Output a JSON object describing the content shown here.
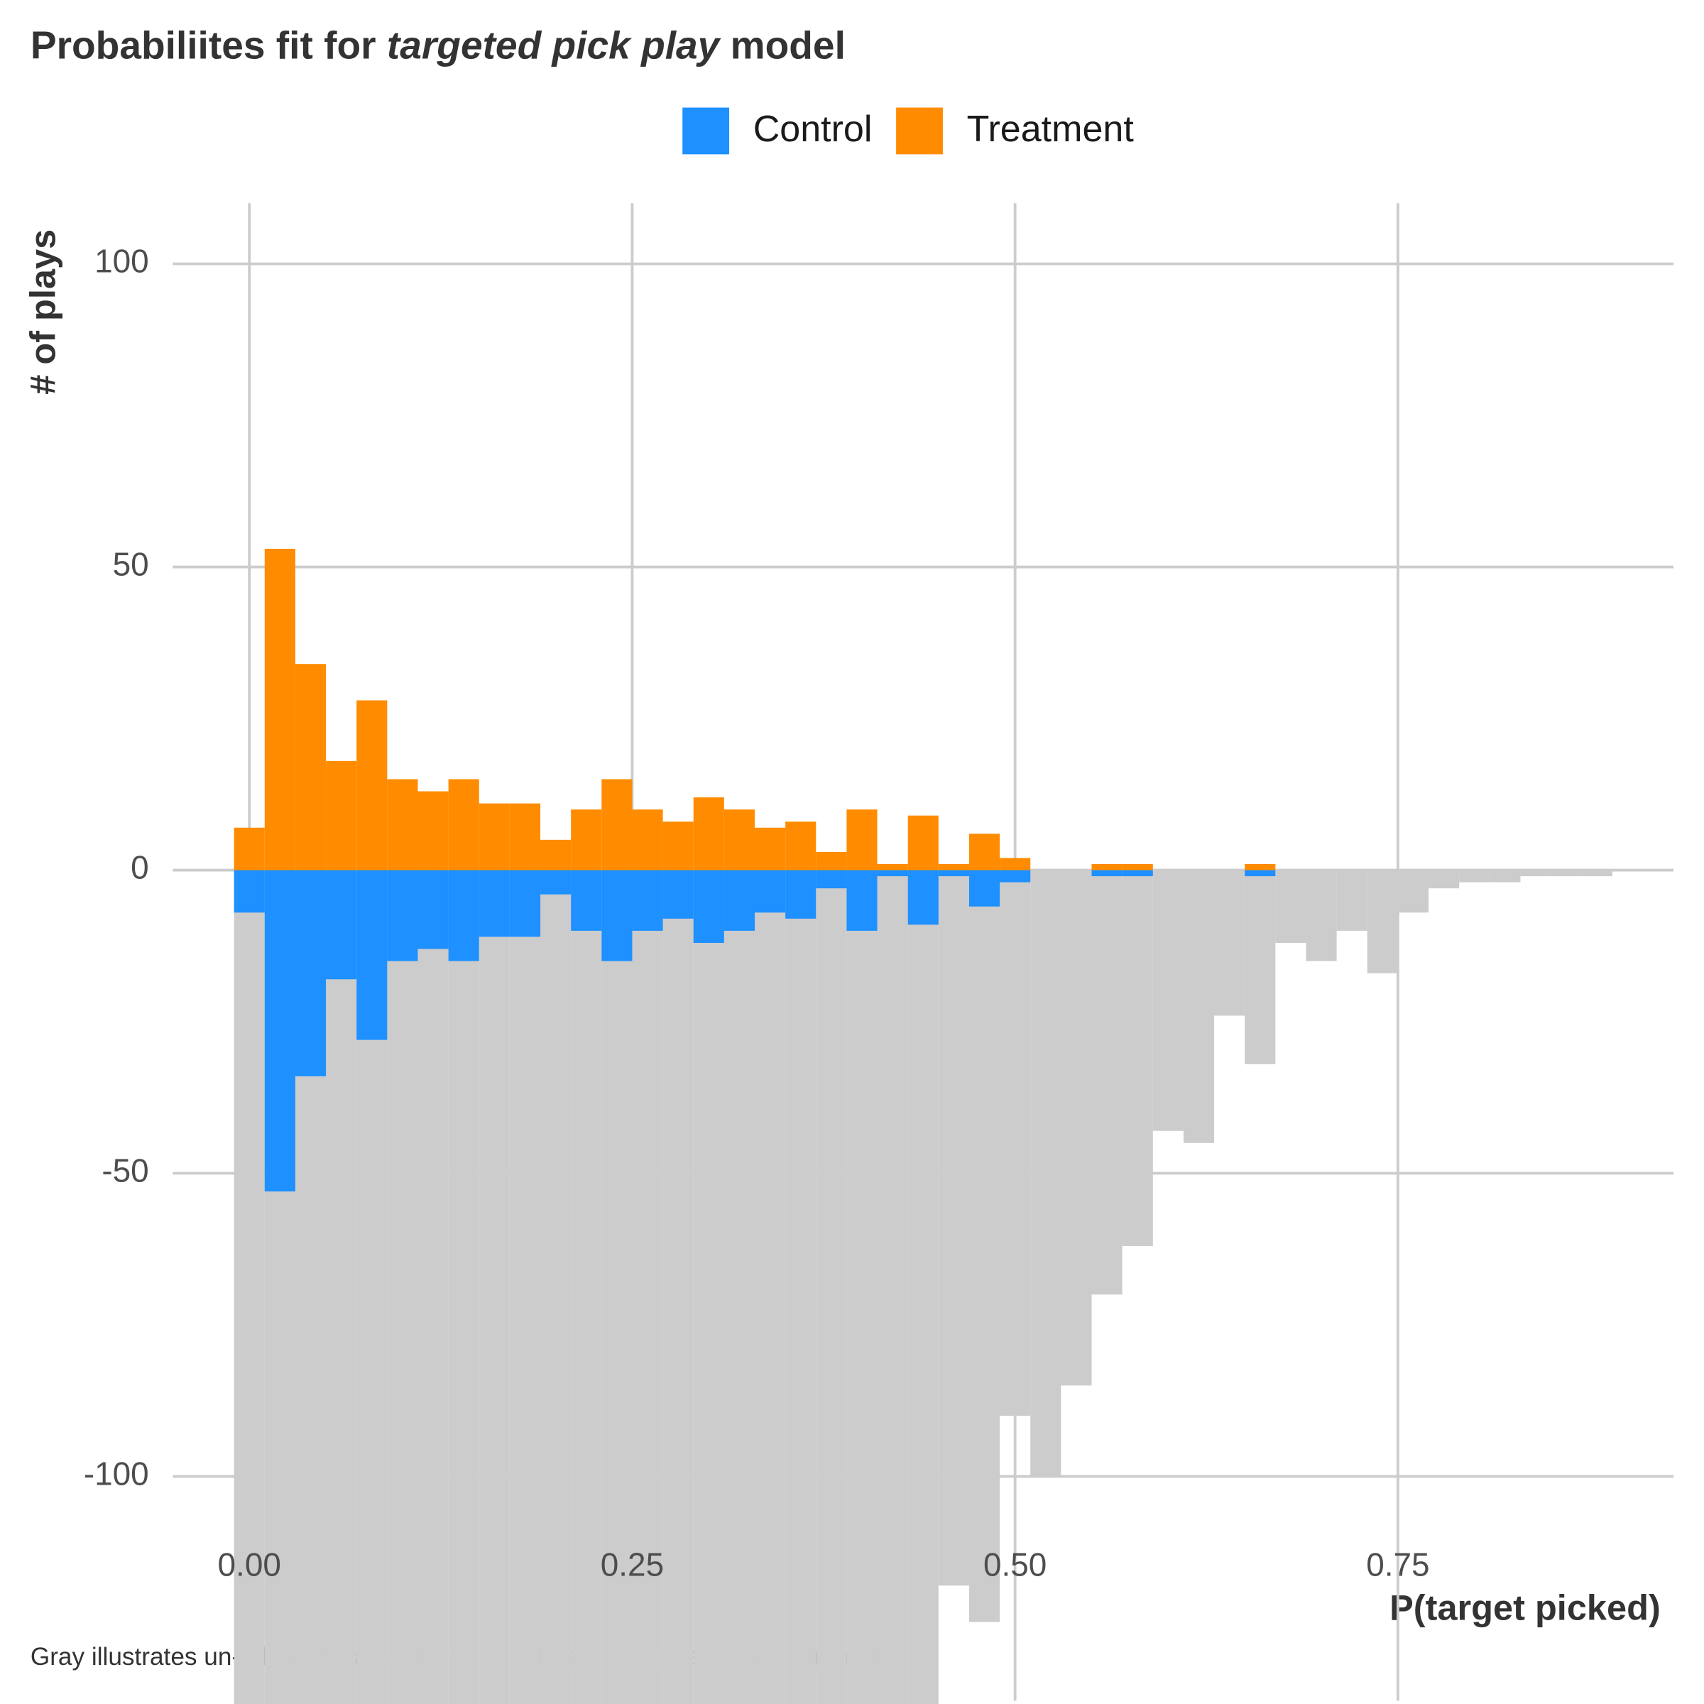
{
  "chart_data": {
    "type": "histogram",
    "title": [
      "Probabiliites fit for",
      "targeted pick play",
      "model"
    ],
    "caption": "Gray illustrates un-adjusted samples, while colors illustrate adjusted samples.",
    "x_label": "P(target picked)",
    "y_label": "# of plays",
    "bins": [
      -0.01,
      0.01,
      0.03,
      0.05,
      0.07,
      0.09,
      0.11,
      0.13,
      0.15,
      0.17,
      0.19,
      0.21,
      0.23,
      0.25,
      0.27,
      0.29,
      0.31,
      0.33,
      0.35,
      0.37,
      0.39,
      0.41,
      0.43,
      0.45,
      0.47,
      0.49,
      0.51,
      0.53,
      0.55,
      0.57,
      0.59,
      0.61,
      0.63,
      0.65,
      0.67,
      0.69,
      0.71,
      0.73,
      0.75,
      0.77,
      0.79,
      0.81,
      0.83,
      0.85,
      0.87,
      0.89
    ],
    "unadjusted": {
      "color": "#cccccc",
      "values": [
        -140,
        -140,
        -140,
        -140,
        -140,
        -140,
        -140,
        -140,
        -140,
        -140,
        -140,
        -140,
        -140,
        -140,
        -140,
        -140,
        -140,
        -140,
        -140,
        -140,
        -140,
        -140,
        -140,
        -118,
        -124,
        -90,
        -100,
        -85,
        -70,
        -62,
        -43,
        -45,
        -24,
        -32,
        -12,
        -15,
        -10,
        -17,
        -7,
        -3,
        -2,
        -2,
        -1,
        -1,
        -1
      ]
    },
    "series": [
      {
        "name": "Control",
        "color": "#1e90ff",
        "values": [
          -7,
          -53,
          -34,
          -18,
          -28,
          -15,
          -13,
          -15,
          -11,
          -11,
          -4,
          -10,
          -15,
          -10,
          -8,
          -12,
          -10,
          -7,
          -8,
          -3,
          -10,
          -1,
          -9,
          -1,
          -6,
          -2,
          0,
          0,
          -1,
          -1,
          0,
          0,
          0,
          -1,
          0,
          0,
          0,
          0,
          0,
          0,
          0,
          0,
          0,
          0,
          0
        ]
      },
      {
        "name": "Treatment",
        "color": "#ff8c00",
        "values": [
          7,
          53,
          34,
          18,
          28,
          15,
          13,
          15,
          11,
          11,
          5,
          10,
          15,
          10,
          8,
          12,
          10,
          7,
          8,
          3,
          10,
          1,
          9,
          1,
          6,
          2,
          0,
          0,
          1,
          1,
          0,
          0,
          0,
          1,
          0,
          0,
          0,
          0,
          0,
          0,
          0,
          0,
          0,
          0,
          0
        ]
      }
    ],
    "xlim": [
      -0.05,
      0.93
    ],
    "ylim": [
      -137,
      110
    ],
    "xticks": [
      {
        "value": 0,
        "label": "0.00"
      },
      {
        "value": 0.25,
        "label": "0.25"
      },
      {
        "value": 0.5,
        "label": "0.50"
      },
      {
        "value": 0.75,
        "label": "0.75"
      }
    ],
    "yticks": [
      -100,
      -50,
      0,
      50,
      100
    ],
    "grid": true,
    "legend": "top"
  }
}
